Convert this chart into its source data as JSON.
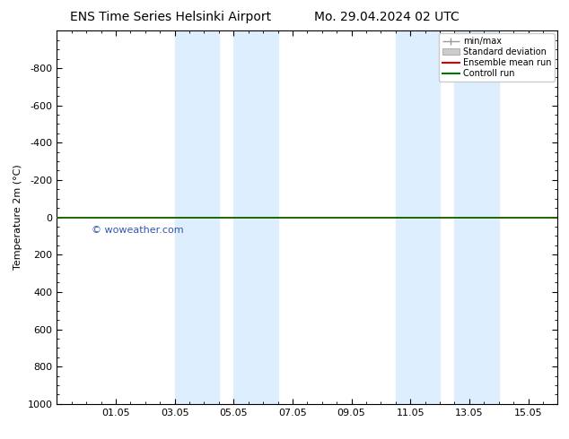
{
  "title_left": "ENS Time Series Helsinki Airport",
  "title_right": "Mo. 29.04.2024 02 UTC",
  "ylabel": "Temperature 2m (°C)",
  "ylim_top": -1000,
  "ylim_bottom": 1000,
  "yticks": [
    -800,
    -600,
    -400,
    -200,
    0,
    200,
    400,
    600,
    800,
    1000
  ],
  "xlim_left": -0.5,
  "xlim_right": 16.5,
  "xtick_positions": [
    1.5,
    3.5,
    5.5,
    7.5,
    9.5,
    11.5,
    13.5,
    15.5
  ],
  "xtick_labels": [
    "01.05",
    "03.05",
    "05.05",
    "07.05",
    "09.05",
    "11.05",
    "13.05",
    "15.05"
  ],
  "shaded_bands": [
    [
      3.5,
      5.0
    ],
    [
      5.5,
      7.0
    ],
    [
      11.0,
      12.5
    ],
    [
      13.0,
      14.5
    ]
  ],
  "shaded_color": "#ddeeff",
  "control_run_y": 0,
  "control_run_color": "#007700",
  "ensemble_mean_color": "#dd0000",
  "watermark": "© woweather.com",
  "watermark_color": "#3355aa",
  "legend_labels": [
    "min/max",
    "Standard deviation",
    "Ensemble mean run",
    "Controll run"
  ],
  "legend_colors_line": [
    "#999999",
    "#bbbbbb",
    "#dd0000",
    "#007700"
  ],
  "background_color": "#ffffff",
  "title_fontsize": 10,
  "axis_fontsize": 8,
  "tick_fontsize": 8,
  "legend_fontsize": 7
}
